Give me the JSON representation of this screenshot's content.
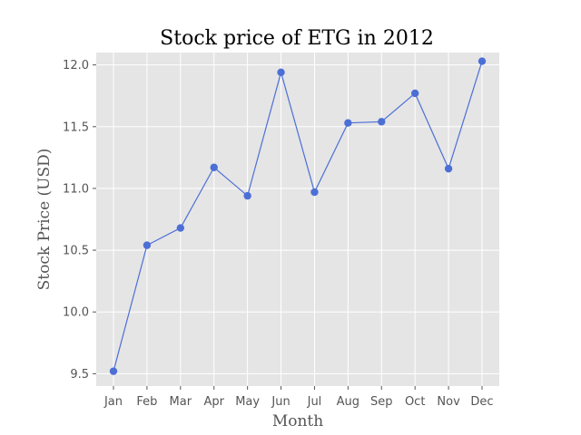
{
  "chart_data": {
    "type": "line",
    "title": "Stock price of ETG in 2012",
    "xlabel": "Month",
    "ylabel": "Stock Price (USD)",
    "categories": [
      "Jan",
      "Feb",
      "Mar",
      "Apr",
      "May",
      "Jun",
      "Jul",
      "Aug",
      "Sep",
      "Oct",
      "Nov",
      "Dec"
    ],
    "values": [
      9.52,
      10.54,
      10.68,
      11.17,
      10.94,
      11.94,
      10.97,
      11.53,
      11.54,
      11.77,
      11.16,
      12.03
    ],
    "yticks": [
      9.5,
      10.0,
      10.5,
      11.0,
      11.5,
      12.0
    ],
    "ytick_labels": [
      "9.5",
      "10.0",
      "10.5",
      "11.0",
      "11.5",
      "12.0"
    ],
    "ylim": [
      9.4,
      12.1
    ],
    "grid": true,
    "colors": {
      "line": "#4c6fd6",
      "plot_background": "#e5e5e5"
    }
  }
}
